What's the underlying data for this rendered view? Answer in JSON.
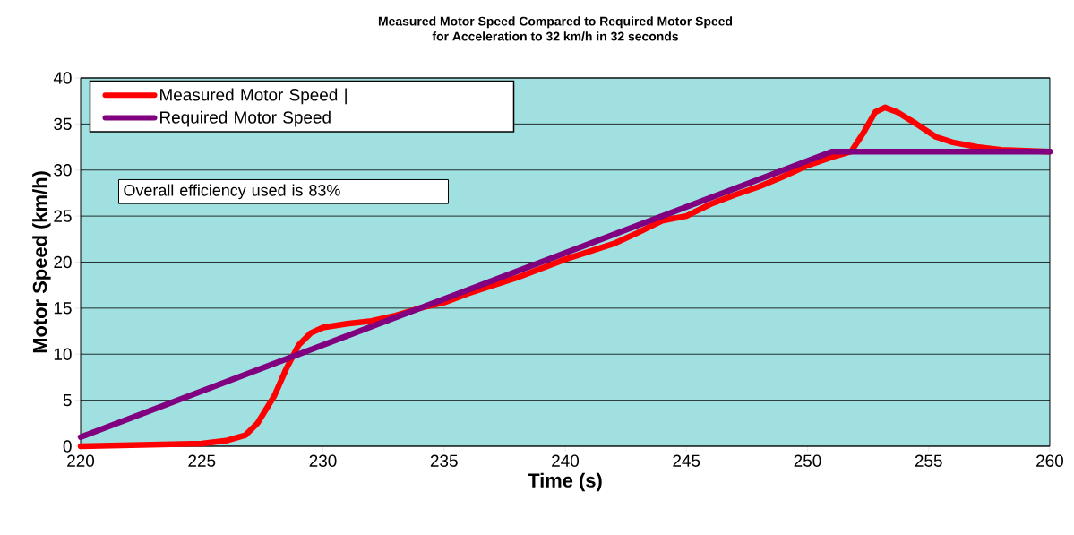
{
  "chart_data": {
    "type": "line",
    "title": "Measured Motor Speed Compared to Required Motor Speed",
    "subtitle": "for Acceleration to 32 km/h in 32 seconds",
    "xlabel": "Time (s)",
    "ylabel": "Motor Speed (km/h)",
    "xlim": [
      220,
      260
    ],
    "xticks": [
      220,
      225,
      230,
      235,
      240,
      245,
      250,
      255,
      260
    ],
    "ylim": [
      0,
      40
    ],
    "yticks": [
      0,
      5,
      10,
      15,
      20,
      25,
      30,
      35,
      40
    ],
    "grid": "y",
    "legend": "top left",
    "annotations": [
      "Overall efficiency used is 83%"
    ],
    "series": [
      {
        "name": "Measured Motor Speed |",
        "color": "#ff0000",
        "x": [
          220,
          225,
          226,
          226.8,
          227.3,
          228,
          228.5,
          229,
          229.5,
          230,
          231,
          232,
          233,
          234,
          235,
          236,
          238,
          240,
          242,
          243,
          244,
          245,
          246,
          247,
          248,
          249,
          250,
          251,
          251.8,
          252.3,
          252.8,
          253.2,
          253.7,
          254.5,
          255.3,
          256,
          257,
          258,
          260
        ],
        "values": [
          0,
          0.3,
          0.6,
          1.2,
          2.5,
          5.5,
          8.5,
          11,
          12.3,
          12.9,
          13.3,
          13.6,
          14.2,
          15,
          15.6,
          16.6,
          18.3,
          20.3,
          22,
          23.2,
          24.5,
          25,
          26.3,
          27.3,
          28.2,
          29.3,
          30.5,
          31.4,
          32,
          34,
          36.3,
          36.8,
          36.3,
          35,
          33.6,
          33,
          32.5,
          32.2,
          32
        ]
      },
      {
        "name": "Required Motor Speed",
        "color": "#800080",
        "x": [
          220,
          251,
          260
        ],
        "values": [
          1,
          32,
          32
        ]
      }
    ]
  }
}
